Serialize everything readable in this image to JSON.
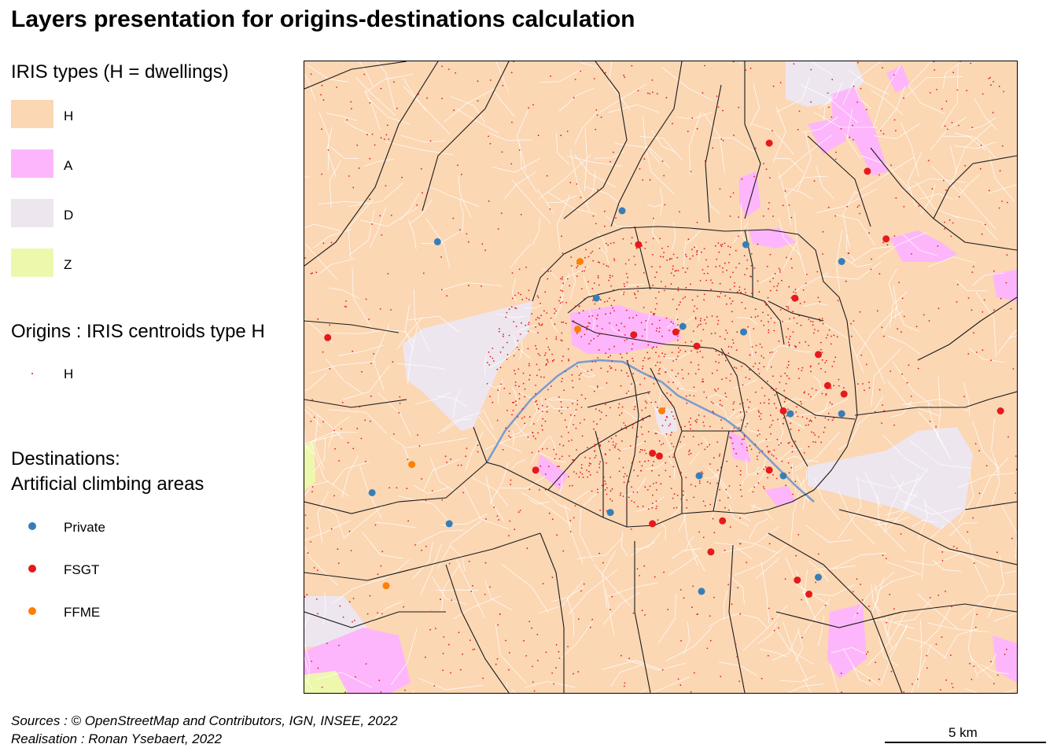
{
  "title": "Layers presentation for origins-destinations calculation",
  "legend": {
    "iris_heading": "IRIS types (H = dwellings)",
    "iris_types": [
      {
        "code": "H",
        "label": "H",
        "color": "#fbd7b4"
      },
      {
        "code": "A",
        "label": "A",
        "color": "#fdb6fb"
      },
      {
        "code": "D",
        "label": "D",
        "color": "#ede6ef"
      },
      {
        "code": "Z",
        "label": "Z",
        "color": "#eef8ad"
      }
    ],
    "origins_heading": "Origins : IRIS centroids type H",
    "origins_item": {
      "label": "H",
      "color": "#e41a1c"
    },
    "destinations_heading_line1": "Destinations:",
    "destinations_heading_line2": "Artificial climbing areas",
    "destinations": [
      {
        "label": "Private",
        "color": "#377eb8"
      },
      {
        "label": "FSGT",
        "color": "#e41a1c"
      },
      {
        "label": "FFME",
        "color": "#ff7f00"
      }
    ]
  },
  "map": {
    "colors": {
      "H": "#fbd7b4",
      "A": "#fdb6fb",
      "D": "#ede6ef",
      "Z": "#eef8ad",
      "river": "#7a9bd0",
      "boundary": "#1a1a1a",
      "iris_line": "#ffffff",
      "centroid": "#e41a1c"
    },
    "destinations": [
      {
        "type": "Private",
        "lon": 2.332,
        "lat": 48.911
      },
      {
        "type": "Private",
        "lon": 2.253,
        "lat": 48.9
      },
      {
        "type": "Private",
        "lon": 2.385,
        "lat": 48.899
      },
      {
        "type": "Private",
        "lon": 2.426,
        "lat": 48.893
      },
      {
        "type": "Private",
        "lon": 2.321,
        "lat": 48.88
      },
      {
        "type": "Private",
        "lon": 2.358,
        "lat": 48.87
      },
      {
        "type": "Private",
        "lon": 2.384,
        "lat": 48.868
      },
      {
        "type": "Private",
        "lon": 2.404,
        "lat": 48.839
      },
      {
        "type": "Private",
        "lon": 2.426,
        "lat": 48.839
      },
      {
        "type": "Private",
        "lon": 2.365,
        "lat": 48.817
      },
      {
        "type": "Private",
        "lon": 2.401,
        "lat": 48.817
      },
      {
        "type": "Private",
        "lon": 2.225,
        "lat": 48.811
      },
      {
        "type": "Private",
        "lon": 2.258,
        "lat": 48.8
      },
      {
        "type": "Private",
        "lon": 2.327,
        "lat": 48.804
      },
      {
        "type": "Private",
        "lon": 2.416,
        "lat": 48.781
      },
      {
        "type": "Private",
        "lon": 2.366,
        "lat": 48.776
      },
      {
        "type": "FSGT",
        "lon": 2.395,
        "lat": 48.935
      },
      {
        "type": "FSGT",
        "lon": 2.437,
        "lat": 48.925
      },
      {
        "type": "FSGT",
        "lon": 2.339,
        "lat": 48.899
      },
      {
        "type": "FSGT",
        "lon": 2.445,
        "lat": 48.901
      },
      {
        "type": "FSGT",
        "lon": 2.406,
        "lat": 48.88
      },
      {
        "type": "FSGT",
        "lon": 2.206,
        "lat": 48.866
      },
      {
        "type": "FSGT",
        "lon": 2.355,
        "lat": 48.868
      },
      {
        "type": "FSGT",
        "lon": 2.337,
        "lat": 48.867
      },
      {
        "type": "FSGT",
        "lon": 2.364,
        "lat": 48.863
      },
      {
        "type": "FSGT",
        "lon": 2.416,
        "lat": 48.86
      },
      {
        "type": "FSGT",
        "lon": 2.42,
        "lat": 48.849
      },
      {
        "type": "FSGT",
        "lon": 2.427,
        "lat": 48.846
      },
      {
        "type": "FSGT",
        "lon": 2.494,
        "lat": 48.84
      },
      {
        "type": "FSGT",
        "lon": 2.401,
        "lat": 48.84
      },
      {
        "type": "FSGT",
        "lon": 2.345,
        "lat": 48.825
      },
      {
        "type": "FSGT",
        "lon": 2.348,
        "lat": 48.824
      },
      {
        "type": "FSGT",
        "lon": 2.395,
        "lat": 48.819
      },
      {
        "type": "FSGT",
        "lon": 2.295,
        "lat": 48.819
      },
      {
        "type": "FSGT",
        "lon": 2.345,
        "lat": 48.8
      },
      {
        "type": "FSGT",
        "lon": 2.375,
        "lat": 48.801
      },
      {
        "type": "FSGT",
        "lon": 2.37,
        "lat": 48.79
      },
      {
        "type": "FSGT",
        "lon": 2.407,
        "lat": 48.78
      },
      {
        "type": "FSGT",
        "lon": 2.412,
        "lat": 48.775
      },
      {
        "type": "FFME",
        "lon": 2.314,
        "lat": 48.893
      },
      {
        "type": "FFME",
        "lon": 2.313,
        "lat": 48.869
      },
      {
        "type": "FFME",
        "lon": 2.349,
        "lat": 48.84
      },
      {
        "type": "FFME",
        "lon": 2.242,
        "lat": 48.821
      },
      {
        "type": "FFME",
        "lon": 2.231,
        "lat": 48.778
      }
    ]
  },
  "sources_line1": "Sources : © OpenStreetMap and Contributors, IGN, INSEE, 2022",
  "sources_line2": "Realisation : Ronan Ysebaert, 2022",
  "scale_label": "5 km"
}
